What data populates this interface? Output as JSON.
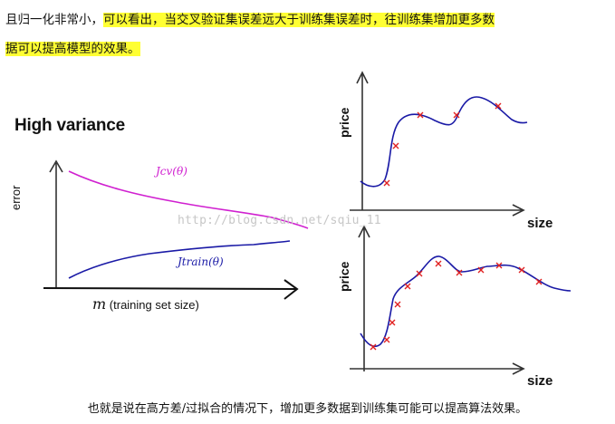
{
  "intro": {
    "plain": "且归一化非常小，",
    "highlight_1": "可以看出，当交叉验证集误差远大于训练集误差时，往训练集增加更多数",
    "highlight_2": "据可以提高模型的效果。"
  },
  "figure": {
    "title": "High variance",
    "left_chart": {
      "y_label": "error",
      "x_symbol": "m",
      "x_label": "(training set size)",
      "cv_curve_label": "Jcv(θ)",
      "train_curve_label": "Jtrain(θ)"
    },
    "right_top": {
      "y_label": "price",
      "x_label": "size"
    },
    "right_bottom": {
      "y_label": "price",
      "x_label": "size"
    },
    "watermark": "http://blog.csdn.net/sqiu_11"
  },
  "caption": "也就是说在高方差/过拟合的情况下，增加更多数据到训练集可能可以提高算法效果。",
  "colors": {
    "highlight": "#ffff33",
    "cv_curve": "#d020d0",
    "train_curve": "#1a1aa6",
    "marker": "#e02020"
  }
}
